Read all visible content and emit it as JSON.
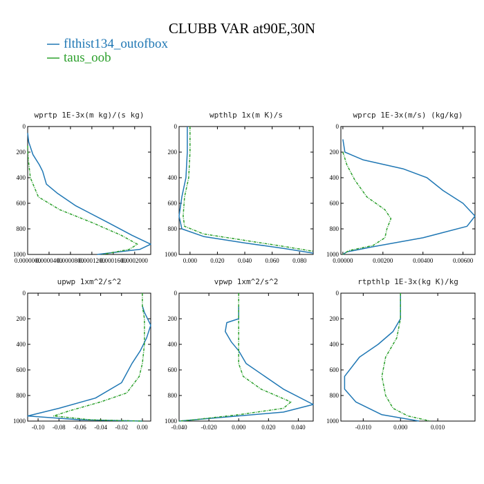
{
  "figure": {
    "title": "CLUBB VAR at90E,30N",
    "legend": [
      {
        "label": "flthist134_outofbox",
        "color": "#1f77b4"
      },
      {
        "label": "taus_oob",
        "color": "#2ca02c"
      }
    ]
  },
  "chart_data": [
    {
      "type": "line",
      "title": "wprtp  1E-3x(m kg)/(s kg)",
      "xlim": [
        0,
        0.00023
      ],
      "ylim": [
        1000,
        0
      ],
      "xticks": [
        0,
        4e-05,
        8e-05,
        0.00012,
        0.00016,
        0.0002
      ],
      "xtick_labels": [
        "0.0000000",
        "0.0000400",
        "0.0000800",
        "0.0001200",
        "0.0001600",
        "0.0002000"
      ],
      "yticks": [
        0,
        200,
        400,
        600,
        800,
        1000
      ],
      "series": [
        {
          "name": "flthist134_outofbox",
          "color": "#1f77b4",
          "dashed": false,
          "x": [
            0,
            2e-06,
            1e-05,
            2.2e-05,
            2.8e-05,
            3.5e-05,
            5.5e-05,
            9e-05,
            0.00015,
            0.000195,
            0.00023,
            0.00021,
            0.00013
          ],
          "y": [
            50,
            120,
            220,
            300,
            350,
            450,
            520,
            620,
            750,
            850,
            920,
            960,
            1000
          ]
        },
        {
          "name": "taus_oob",
          "color": "#2ca02c",
          "dashed": true,
          "x": [
            0,
            1e-06,
            5e-06,
            2e-05,
            6e-05,
            0.00012,
            0.000175,
            0.000205,
            0.00019,
            0.00014
          ],
          "y": [
            150,
            250,
            400,
            550,
            650,
            750,
            850,
            920,
            960,
            1000
          ]
        }
      ]
    },
    {
      "type": "line",
      "title": "wpthlp  1x(m K)/s",
      "xlim": [
        -0.008,
        0.09
      ],
      "ylim": [
        1000,
        0
      ],
      "xticks": [
        0,
        0.02,
        0.04,
        0.06,
        0.08
      ],
      "xtick_labels": [
        "0.000",
        "0.020",
        "0.040",
        "0.060",
        "0.080"
      ],
      "yticks": [
        0,
        200,
        400,
        600,
        800,
        1000
      ],
      "series": [
        {
          "name": "flthist134_outofbox",
          "color": "#1f77b4",
          "dashed": false,
          "x": [
            -0.002,
            -0.002,
            -0.003,
            -0.006,
            -0.008,
            -0.006,
            0.01,
            0.04,
            0.07,
            0.09
          ],
          "y": [
            0,
            200,
            400,
            550,
            700,
            800,
            860,
            910,
            955,
            990
          ]
        },
        {
          "name": "taus_oob",
          "color": "#2ca02c",
          "dashed": true,
          "x": [
            0,
            0,
            -0.001,
            -0.004,
            -0.005,
            -0.004,
            0.01,
            0.04,
            0.07,
            0.09
          ],
          "y": [
            0,
            200,
            400,
            550,
            700,
            780,
            840,
            890,
            940,
            975
          ]
        }
      ]
    },
    {
      "type": "line",
      "title": "wprcp  1E-3x(m/s) (kg/kg)",
      "xlim": [
        -0.0001,
        0.0066
      ],
      "ylim": [
        1000,
        0
      ],
      "xticks": [
        0,
        0.002,
        0.004,
        0.006
      ],
      "xtick_labels": [
        "0.00000",
        "0.00200",
        "0.00400",
        "0.00600"
      ],
      "yticks": [
        0,
        200,
        400,
        600,
        800,
        1000
      ],
      "series": [
        {
          "name": "flthist134_outofbox",
          "color": "#1f77b4",
          "dashed": false,
          "x": [
            0,
            0.0001,
            0.001,
            0.003,
            0.0042,
            0.005,
            0.006,
            0.0066,
            0.0062,
            0.004,
            0.0015,
            0.0002,
            0
          ],
          "y": [
            100,
            200,
            260,
            330,
            400,
            500,
            600,
            700,
            780,
            870,
            940,
            980,
            1000
          ]
        },
        {
          "name": "taus_oob",
          "color": "#2ca02c",
          "dashed": true,
          "x": [
            0,
            0.0002,
            0.0006,
            0.0012,
            0.0021,
            0.0024,
            0.0022,
            0.0021,
            0.0015,
            0.0003,
            0
          ],
          "y": [
            200,
            300,
            420,
            550,
            650,
            720,
            800,
            870,
            930,
            970,
            1000
          ]
        }
      ]
    },
    {
      "type": "line",
      "title": "upwp  1xm^2/s^2",
      "xlim": [
        -0.11,
        0.008
      ],
      "ylim": [
        1000,
        0
      ],
      "xticks": [
        -0.1,
        -0.08,
        -0.06,
        -0.04,
        -0.02,
        0
      ],
      "xtick_labels": [
        "-0.10",
        "-0.08",
        "-0.06",
        "-0.04",
        "-0.02",
        "0.00"
      ],
      "yticks": [
        0,
        200,
        400,
        600,
        800,
        1000
      ],
      "series": [
        {
          "name": "flthist134_outofbox",
          "color": "#1f77b4",
          "dashed": false,
          "x": [
            0,
            0.002,
            0.008,
            0.004,
            -0.002,
            -0.01,
            -0.02,
            -0.045,
            -0.08,
            -0.11,
            -0.06,
            0
          ],
          "y": [
            100,
            150,
            250,
            350,
            450,
            550,
            700,
            820,
            900,
            960,
            990,
            1000
          ]
        },
        {
          "name": "taus_oob",
          "color": "#2ca02c",
          "dashed": true,
          "x": [
            0,
            0,
            0.002,
            0.002,
            0,
            -0.003,
            -0.015,
            -0.04,
            -0.07,
            -0.085,
            -0.05,
            0
          ],
          "y": [
            0,
            100,
            200,
            400,
            550,
            650,
            780,
            850,
            920,
            960,
            990,
            1000
          ]
        }
      ]
    },
    {
      "type": "line",
      "title": "vpwp  1xm^2/s^2",
      "xlim": [
        -0.04,
        0.05
      ],
      "ylim": [
        1000,
        0
      ],
      "xticks": [
        -0.04,
        -0.02,
        0,
        0.02,
        0.04
      ],
      "xtick_labels": [
        "-0.040",
        "-0.020",
        "0.000",
        "0.020",
        "0.040"
      ],
      "yticks": [
        0,
        200,
        400,
        600,
        800,
        1000
      ],
      "series": [
        {
          "name": "flthist134_outofbox",
          "color": "#1f77b4",
          "dashed": false,
          "x": [
            0,
            0,
            -0.008,
            -0.009,
            -0.005,
            0,
            0.005,
            0.03,
            0.05,
            0.03,
            -0.02,
            -0.04
          ],
          "y": [
            100,
            200,
            230,
            300,
            380,
            450,
            550,
            750,
            870,
            930,
            980,
            1000
          ]
        },
        {
          "name": "taus_oob",
          "color": "#2ca02c",
          "dashed": true,
          "x": [
            0,
            0,
            0,
            0.003,
            0.015,
            0.035,
            0.03,
            0,
            -0.03,
            -0.04
          ],
          "y": [
            0,
            300,
            550,
            650,
            750,
            850,
            900,
            950,
            990,
            1000
          ]
        }
      ]
    },
    {
      "type": "line",
      "title": "rtpthlp  1E-3x(kg K)/kg",
      "xlim": [
        -0.016,
        0.02
      ],
      "ylim": [
        1000,
        0
      ],
      "xticks": [
        -0.01,
        0,
        0.01
      ],
      "xtick_labels": [
        "-0.010",
        "0.000",
        "0.010"
      ],
      "yticks": [
        0,
        200,
        400,
        600,
        800,
        1000
      ],
      "series": [
        {
          "name": "flthist134_outofbox",
          "color": "#1f77b4",
          "dashed": false,
          "x": [
            0,
            0,
            -0.002,
            -0.006,
            -0.011,
            -0.015,
            -0.015,
            -0.012,
            -0.005,
            0.005
          ],
          "y": [
            0,
            200,
            300,
            400,
            500,
            650,
            750,
            850,
            950,
            1000
          ]
        },
        {
          "name": "taus_oob",
          "color": "#2ca02c",
          "dashed": true,
          "x": [
            0,
            0,
            -0.001,
            -0.004,
            -0.005,
            -0.004,
            -0.002,
            0.002,
            0.008
          ],
          "y": [
            0,
            200,
            350,
            500,
            650,
            800,
            900,
            960,
            1000
          ]
        }
      ]
    }
  ]
}
